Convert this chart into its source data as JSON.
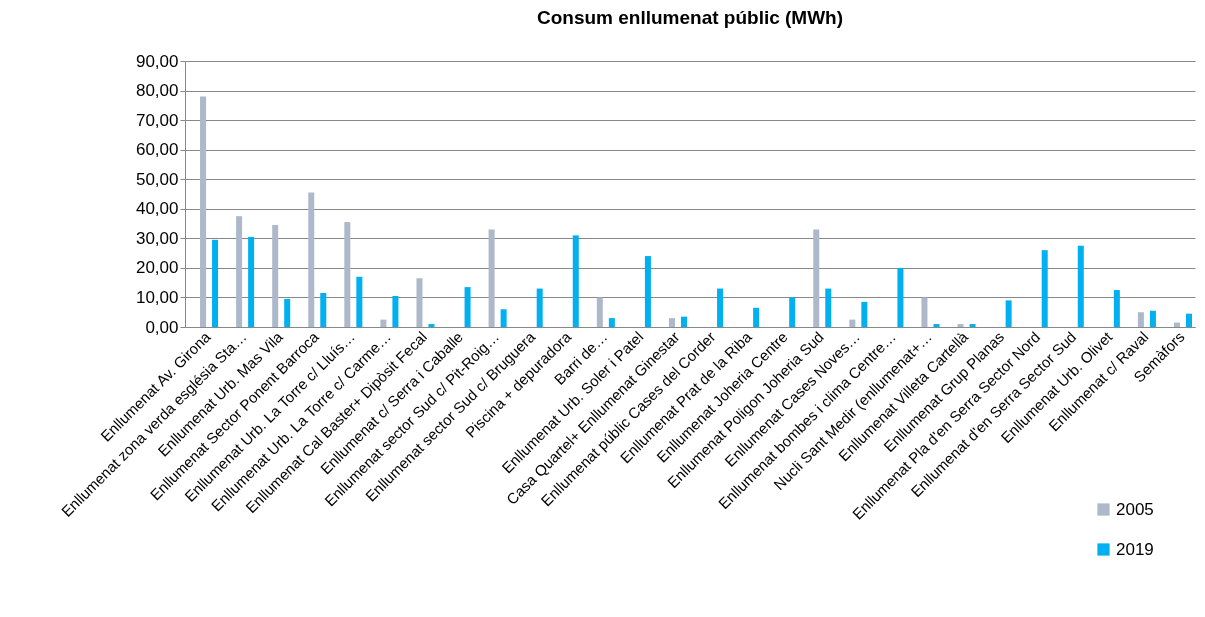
{
  "chart_data": {
    "type": "bar",
    "title": "Consum enllumenat públic (MWh)",
    "categories": [
      "Enllumenat Av. Girona",
      "Enllumenat zona verda església Sta…",
      "Enllumenat Urb. Mas Vila",
      "Enllumenat Sector Ponent Barroca",
      "Enllumenat Urb. La Torre c/ Lluís…",
      "Enllumenat Urb. La Torre c/ Carme…",
      "Enllumenat Cal Baster+ Dipòsit Fecal",
      "Enllumenat c/ Serra i Caballe",
      "Enllumenat sector Sud c/ Pit-Roig…",
      "Enllumenat sector Sud c/ Bruguera",
      "Piscina + depuradora",
      "Barri de…",
      "Enllumenat Urb. Soler i Patel",
      "Casa Quartel+ Enllumenat Ginestar",
      "Enllumenat públic Cases del Corder",
      "Enllumenat Prat de la Riba",
      "Enllumenat Joheria Centre",
      "Enllumenat Poligon Joheria Sud",
      "Enllumenat Cases Noves…",
      "Enllumenat bombes i clima Centre…",
      "Nucli Sant Medir (enllumenat+…",
      "Enllumenat Villeta Cartellà",
      "Enllumenat Grup Planas",
      "Enllumenat Pla d'en Serra Sector Nord",
      "Enllumenat d'en Serra Sector Sud",
      "Enllumenat Urb. Olivet",
      "Enllumenat c/ Raval",
      "Semàfors"
    ],
    "series": [
      {
        "name": "2005",
        "color": "#adb9ca",
        "values": [
          78,
          37.5,
          34.5,
          45.5,
          35.5,
          2.5,
          16.5,
          null,
          33,
          null,
          null,
          10,
          null,
          3,
          null,
          null,
          null,
          33,
          2.5,
          null,
          10,
          1,
          null,
          null,
          null,
          null,
          5,
          1.5
        ]
      },
      {
        "name": "2019",
        "color": "#00b0f0",
        "values": [
          29.5,
          30.5,
          9.5,
          11.5,
          17,
          10.5,
          1,
          13.5,
          6,
          13,
          31,
          3,
          24,
          3.5,
          13,
          6.5,
          10,
          13,
          8.5,
          20,
          1,
          1,
          9,
          26,
          27.5,
          12.5,
          5.5,
          4.5
        ]
      }
    ],
    "ylim": [
      0,
      90
    ],
    "yticks": [
      {
        "value": 0,
        "label": "0,00"
      },
      {
        "value": 10,
        "label": "10,00"
      },
      {
        "value": 20,
        "label": "20,00"
      },
      {
        "value": 30,
        "label": "30,00"
      },
      {
        "value": 40,
        "label": "40,00"
      },
      {
        "value": 50,
        "label": "50,00"
      },
      {
        "value": 60,
        "label": "60,00"
      },
      {
        "value": 70,
        "label": "70,00"
      },
      {
        "value": 80,
        "label": "80,00"
      },
      {
        "value": 90,
        "label": "90,00"
      }
    ],
    "grid": "y",
    "legend": "bottom right"
  }
}
